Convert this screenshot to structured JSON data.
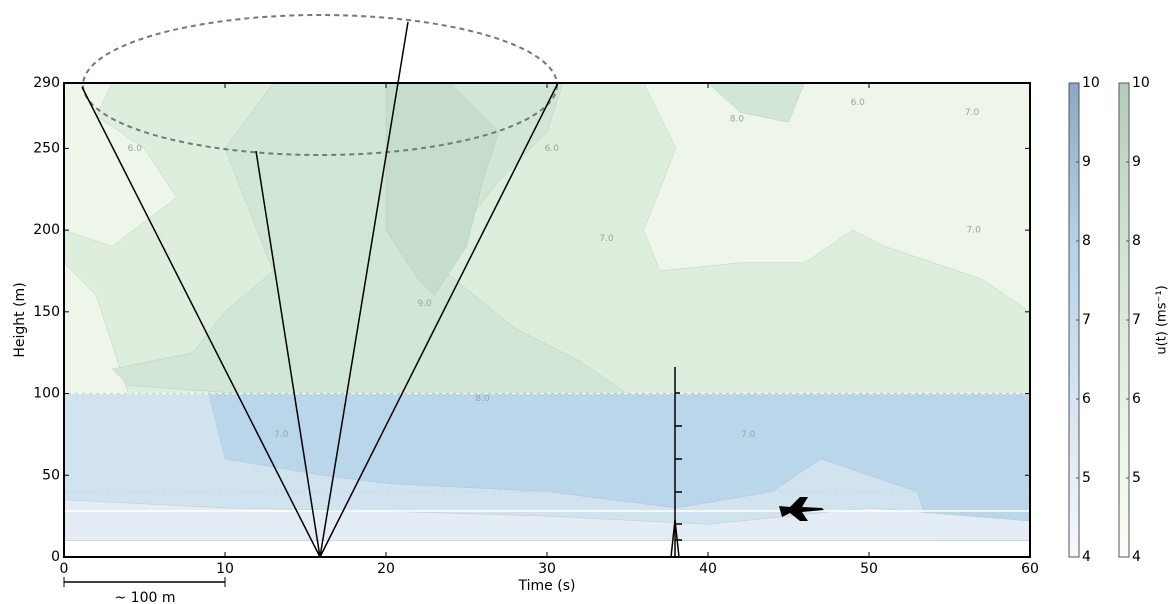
{
  "chart_data": {
    "type": "contour",
    "xlabel": "Time (s)",
    "ylabel": "Height (m)",
    "xlim": [
      0,
      60
    ],
    "ylim": [
      0,
      290
    ],
    "xticks": [
      0,
      10,
      20,
      30,
      40,
      50,
      60
    ],
    "yticks": [
      0,
      50,
      100,
      150,
      200,
      250,
      290
    ],
    "scale_bar": "~ 100 m",
    "colorbar_label": "u(t) (ms⁻¹)",
    "colorbars": [
      {
        "lim": [
          4,
          10
        ],
        "ticks": [
          4,
          5,
          6,
          7,
          8,
          9,
          10
        ],
        "colors": [
          "#f7f9fc",
          "#d4e4f0",
          "#b3d2ea",
          "#8fa6c6"
        ]
      },
      {
        "lim": [
          4,
          10
        ],
        "ticks": [
          4,
          5,
          6,
          7,
          8,
          9,
          10
        ],
        "colors": [
          "#fbfdf9",
          "#e6f2e1",
          "#cfe3d3",
          "#b3ccbc"
        ]
      }
    ],
    "regions": [
      {
        "level": 6,
        "color": "#edf6e8",
        "points": [
          [
            0,
            100
          ],
          [
            60,
            100
          ],
          [
            60,
            290
          ],
          [
            0,
            290
          ]
        ]
      },
      {
        "level": 7,
        "color": "#deeedd",
        "points": [
          [
            0,
            180
          ],
          [
            2,
            160
          ],
          [
            4,
            100
          ],
          [
            60,
            100
          ],
          [
            60,
            150
          ],
          [
            57,
            170
          ],
          [
            51,
            190
          ],
          [
            49,
            200
          ],
          [
            46,
            180
          ],
          [
            42,
            180
          ],
          [
            37,
            175
          ],
          [
            36,
            200
          ],
          [
            38,
            250
          ],
          [
            36,
            290
          ],
          [
            3,
            290
          ],
          [
            2,
            270
          ],
          [
            5,
            250
          ],
          [
            7,
            220
          ],
          [
            3,
            190
          ],
          [
            0,
            200
          ]
        ]
      },
      {
        "level": 8,
        "color": "#d2e6d6",
        "points": [
          [
            3,
            115
          ],
          [
            8,
            125
          ],
          [
            10,
            150
          ],
          [
            13,
            175
          ],
          [
            10,
            250
          ],
          [
            13,
            290
          ],
          [
            31,
            290
          ],
          [
            30,
            260
          ],
          [
            27,
            230
          ],
          [
            23,
            180
          ],
          [
            28,
            140
          ],
          [
            32,
            120
          ],
          [
            35,
            100
          ],
          [
            11,
            100
          ],
          [
            4,
            105
          ]
        ]
      },
      {
        "level": 9,
        "color": "#c6ddcc",
        "points": [
          [
            20,
            290
          ],
          [
            20,
            260
          ],
          [
            20,
            200
          ],
          [
            22,
            170
          ],
          [
            23,
            160
          ],
          [
            25,
            190
          ],
          [
            26,
            230
          ],
          [
            27,
            260
          ],
          [
            24,
            290
          ]
        ]
      },
      {
        "level": 8,
        "color": "#d2e6d6",
        "points": [
          [
            40,
            290
          ],
          [
            42,
            272
          ],
          [
            45,
            266
          ],
          [
            46,
            290
          ]
        ]
      },
      {
        "level": 6,
        "color": "#d1e3ef",
        "points": [
          [
            0,
            10
          ],
          [
            60,
            10
          ],
          [
            60,
            100
          ],
          [
            0,
            100
          ]
        ]
      },
      {
        "level": 7,
        "color": "#b9d6ea",
        "points": [
          [
            11,
            100
          ],
          [
            60,
            100
          ],
          [
            60,
            10
          ],
          [
            54,
            10
          ],
          [
            53,
            40
          ],
          [
            47,
            60
          ],
          [
            44,
            40
          ],
          [
            38,
            30
          ],
          [
            30,
            40
          ],
          [
            20,
            45
          ],
          [
            16,
            50
          ],
          [
            10,
            60
          ],
          [
            9,
            100
          ]
        ]
      },
      {
        "level": 5,
        "color": "#e4edf5",
        "points": [
          [
            0,
            10
          ],
          [
            60,
            10
          ],
          [
            60,
            22
          ],
          [
            50,
            30
          ],
          [
            40,
            20
          ],
          [
            30,
            25
          ],
          [
            20,
            28
          ],
          [
            10,
            30
          ],
          [
            0,
            35
          ]
        ]
      }
    ],
    "contour_labels": [
      {
        "text": "9.0",
        "x": 22.4,
        "y": 155
      },
      {
        "text": "7.0",
        "x": 33.7,
        "y": 195
      },
      {
        "text": "8.0",
        "x": 41.8,
        "y": 268
      },
      {
        "text": "6.0",
        "x": 49.3,
        "y": 278
      },
      {
        "text": "7.0",
        "x": 56.4,
        "y": 272
      },
      {
        "text": "7.0",
        "x": 56.5,
        "y": 200
      },
      {
        "text": "6.0",
        "x": 30.3,
        "y": 250
      },
      {
        "text": "6.0",
        "x": 4.4,
        "y": 250
      },
      {
        "text": "7.0",
        "x": 13.5,
        "y": 75
      },
      {
        "text": "7.0",
        "x": 42.5,
        "y": 75
      },
      {
        "text": "8.0",
        "x": 26,
        "y": 97
      }
    ]
  }
}
